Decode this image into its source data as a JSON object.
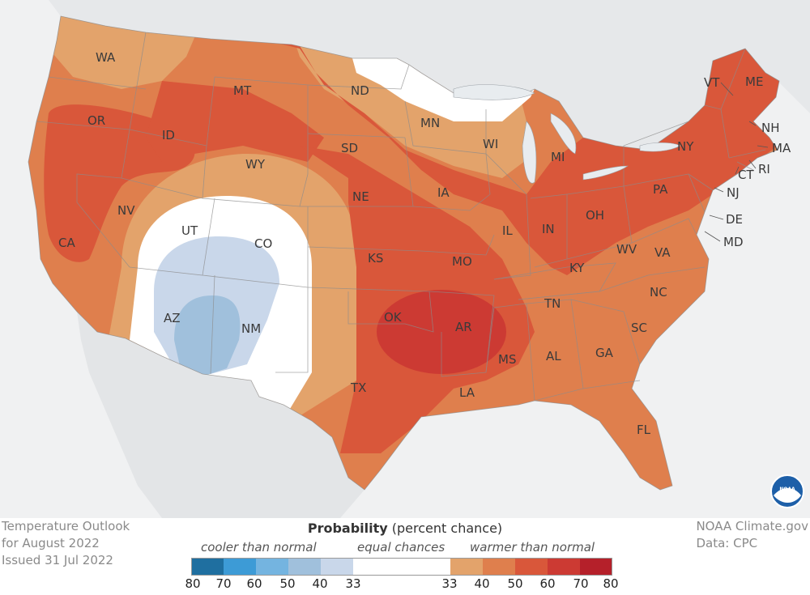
{
  "caption": {
    "line1": "Temperature Outlook",
    "line2": "for August 2022",
    "line3": "Issued 31 Jul 2022"
  },
  "source": {
    "line1": "NOAA Climate.gov",
    "line2": "Data: CPC"
  },
  "legend": {
    "title_bold": "Probability",
    "title_rest": "(percent chance)",
    "cooler_label": "cooler than normal",
    "equal_label": "equal chances",
    "warmer_label": "warmer than normal",
    "cooler_colors": [
      "#1f6fa0",
      "#3d9bd6",
      "#74b4e0",
      "#a0c0dc",
      "#c9d7ea"
    ],
    "equal_color": "#ffffff",
    "warmer_colors": [
      "#e3a36b",
      "#df7f4d",
      "#d9573a",
      "#cc3a33",
      "#b5202a"
    ],
    "ticks_cooler": [
      "80",
      "70",
      "60",
      "50",
      "40",
      "33"
    ],
    "ticks_warmer": [
      "33",
      "40",
      "50",
      "60",
      "70",
      "80"
    ]
  },
  "logo": {
    "text": "NOAA"
  },
  "states": [
    "WA",
    "OR",
    "CA",
    "ID",
    "NV",
    "MT",
    "WY",
    "UT",
    "CO",
    "AZ",
    "NM",
    "ND",
    "SD",
    "NE",
    "KS",
    "OK",
    "TX",
    "MN",
    "IA",
    "MO",
    "AR",
    "LA",
    "WI",
    "IL",
    "MI",
    "IN",
    "OH",
    "KY",
    "TN",
    "MS",
    "AL",
    "GA",
    "FL",
    "SC",
    "NC",
    "VA",
    "WV",
    "PA",
    "NY",
    "VT",
    "ME",
    "NH",
    "MA",
    "RI",
    "CT",
    "NJ",
    "DE",
    "MD"
  ]
}
